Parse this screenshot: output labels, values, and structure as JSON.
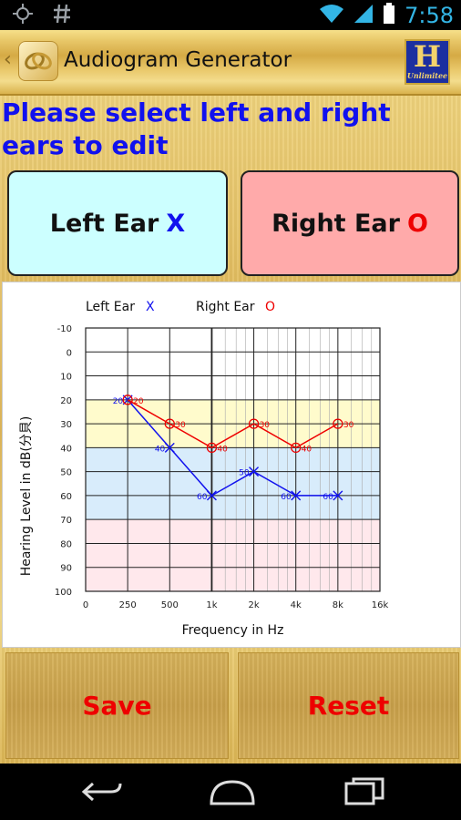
{
  "status": {
    "time": "7:58",
    "left_icons": [
      "crosshair-icon",
      "hash-icon"
    ]
  },
  "app": {
    "title": "Audiogram Generator"
  },
  "instruction": "Please select left and right ears to edit",
  "buttons": {
    "left_ear": {
      "label": "Left Ear",
      "mark": "X"
    },
    "right_ear": {
      "label": "Right Ear",
      "mark": "O"
    },
    "save": "Save",
    "reset": "Reset"
  },
  "colors": {
    "left": "#1111ee",
    "right": "#ee0000"
  },
  "chart_data": {
    "type": "line",
    "legend": [
      {
        "name": "Left Ear",
        "symbol": "X"
      },
      {
        "name": "Right Ear",
        "symbol": "O"
      }
    ],
    "xlabel": "Frequency in Hz",
    "ylabel": "Hearing Level in dB(分貝)",
    "x_ticks": [
      "0",
      "250",
      "500",
      "1k",
      "2k",
      "4k",
      "8k",
      "16k"
    ],
    "y_ticks": [
      "-10",
      "0",
      "10",
      "20",
      "30",
      "40",
      "50",
      "60",
      "70",
      "80",
      "90",
      "100"
    ],
    "ylim": [
      -10,
      100
    ],
    "zones": [
      {
        "from": 20,
        "to": 40,
        "color": "#fffbcc"
      },
      {
        "from": 40,
        "to": 70,
        "color": "#d8ecfb"
      },
      {
        "from": 70,
        "to": 100,
        "color": "#ffe8ec"
      }
    ],
    "series": [
      {
        "name": "Left Ear",
        "x": [
          "250",
          "500",
          "1k",
          "2k",
          "4k",
          "8k"
        ],
        "values": [
          20,
          40,
          60,
          50,
          60,
          60
        ],
        "labels": [
          "20",
          "40",
          "60",
          "50",
          "60",
          "60"
        ]
      },
      {
        "name": "Right Ear",
        "x": [
          "250",
          "500",
          "1k",
          "2k",
          "4k",
          "8k"
        ],
        "values": [
          20,
          30,
          40,
          30,
          40,
          30
        ],
        "labels": [
          "20",
          "30",
          "40",
          "30",
          "40",
          "30"
        ]
      }
    ]
  }
}
